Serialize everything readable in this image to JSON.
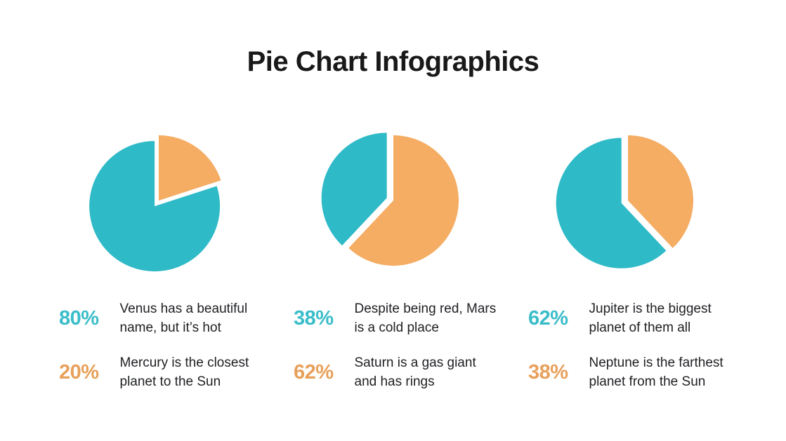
{
  "title": "Pie Chart Infographics",
  "colors": {
    "teal": "#2FBAC8",
    "orange": "#F5AC63",
    "teal_text": "#3ABDC9",
    "orange_text": "#E8A05A",
    "title_text": "#191919",
    "desc_text": "#202124",
    "background": "#FFFFFF"
  },
  "chart_data": [
    {
      "type": "pie",
      "start_angle_deg": 0,
      "direction": "clockwise",
      "slices": [
        {
          "label": "Mercury",
          "value": 20,
          "color": "orange"
        },
        {
          "label": "Venus",
          "value": 80,
          "color": "teal",
          "exploded": true
        }
      ],
      "stats": [
        {
          "pct": "80%",
          "color": "teal",
          "desc": "Venus has a beautiful\nname, but it’s hot"
        },
        {
          "pct": "20%",
          "color": "orange",
          "desc": "Mercury is the closest\nplanet to the Sun"
        }
      ]
    },
    {
      "type": "pie",
      "start_angle_deg": 0,
      "direction": "clockwise",
      "slices": [
        {
          "label": "Saturn",
          "value": 62,
          "color": "orange"
        },
        {
          "label": "Mars",
          "value": 38,
          "color": "teal",
          "exploded": true
        }
      ],
      "stats": [
        {
          "pct": "38%",
          "color": "teal",
          "desc": "Despite being red, Mars\nis a cold place"
        },
        {
          "pct": "62%",
          "color": "orange",
          "desc": "Saturn is a gas giant\nand has rings"
        }
      ]
    },
    {
      "type": "pie",
      "start_angle_deg": 0,
      "direction": "clockwise",
      "slices": [
        {
          "label": "Neptune",
          "value": 38,
          "color": "orange"
        },
        {
          "label": "Jupiter",
          "value": 62,
          "color": "teal",
          "exploded": true
        }
      ],
      "stats": [
        {
          "pct": "62%",
          "color": "teal",
          "desc": "Jupiter is the biggest\nplanet of them all"
        },
        {
          "pct": "38%",
          "color": "orange",
          "desc": "Neptune is the farthest\nplanet from the Sun"
        }
      ]
    }
  ]
}
